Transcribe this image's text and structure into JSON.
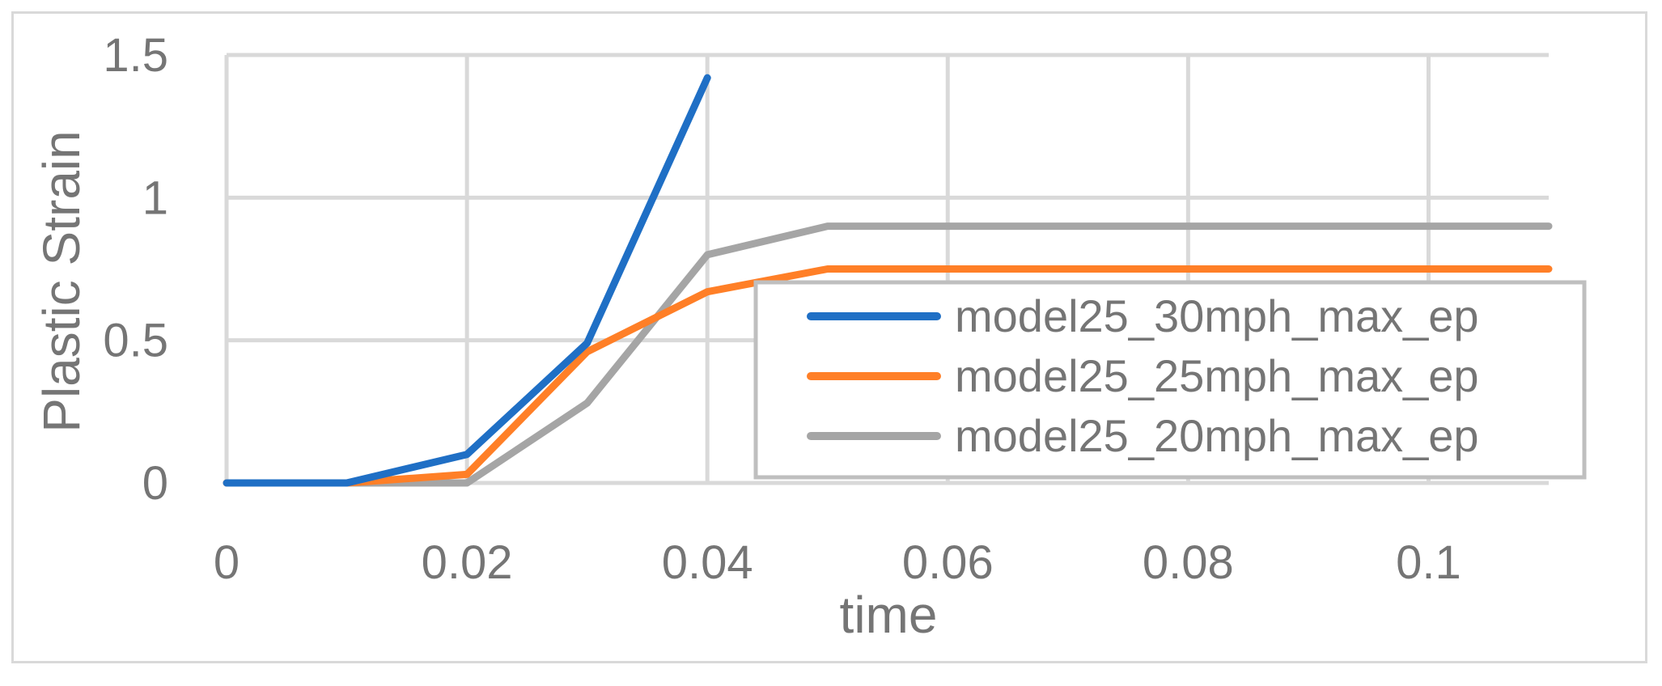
{
  "chart_data": {
    "type": "line",
    "xlabel": "time",
    "ylabel": "Plastic Strain",
    "xlim": [
      0,
      0.11
    ],
    "ylim": [
      0,
      1.5
    ],
    "x_ticks": [
      "0",
      "0.02",
      "0.04",
      "0.06",
      "0.08",
      "0.1"
    ],
    "x_tick_values": [
      0,
      0.02,
      0.04,
      0.06,
      0.08,
      0.1
    ],
    "y_ticks": [
      "0",
      "0.5",
      "1",
      "1.5"
    ],
    "y_tick_values": [
      0,
      0.5,
      1,
      1.5
    ],
    "x_gridlines": [
      0.02,
      0.04,
      0.06,
      0.08,
      0.1
    ],
    "grid": true,
    "legend_position": "bottom-right",
    "series": [
      {
        "name": "model25_30mph_max_ep",
        "color": "#1f6fc5",
        "x": [
          0,
          0.01,
          0.02,
          0.03,
          0.04
        ],
        "y": [
          0,
          0,
          0.1,
          0.49,
          1.42
        ]
      },
      {
        "name": "model25_25mph_max_ep",
        "color": "#ff7f27",
        "x": [
          0,
          0.01,
          0.02,
          0.03,
          0.04,
          0.05,
          0.06,
          0.07,
          0.08,
          0.09,
          0.1,
          0.11
        ],
        "y": [
          0,
          0,
          0.03,
          0.46,
          0.67,
          0.75,
          0.75,
          0.75,
          0.75,
          0.75,
          0.75,
          0.75
        ]
      },
      {
        "name": "model25_20mph_max_ep",
        "color": "#a5a5a5",
        "x": [
          0,
          0.01,
          0.02,
          0.03,
          0.04,
          0.05,
          0.06,
          0.07,
          0.08,
          0.09,
          0.1,
          0.11
        ],
        "y": [
          0,
          0,
          0,
          0.28,
          0.8,
          0.9,
          0.9,
          0.9,
          0.9,
          0.9,
          0.9,
          0.9
        ]
      }
    ]
  }
}
